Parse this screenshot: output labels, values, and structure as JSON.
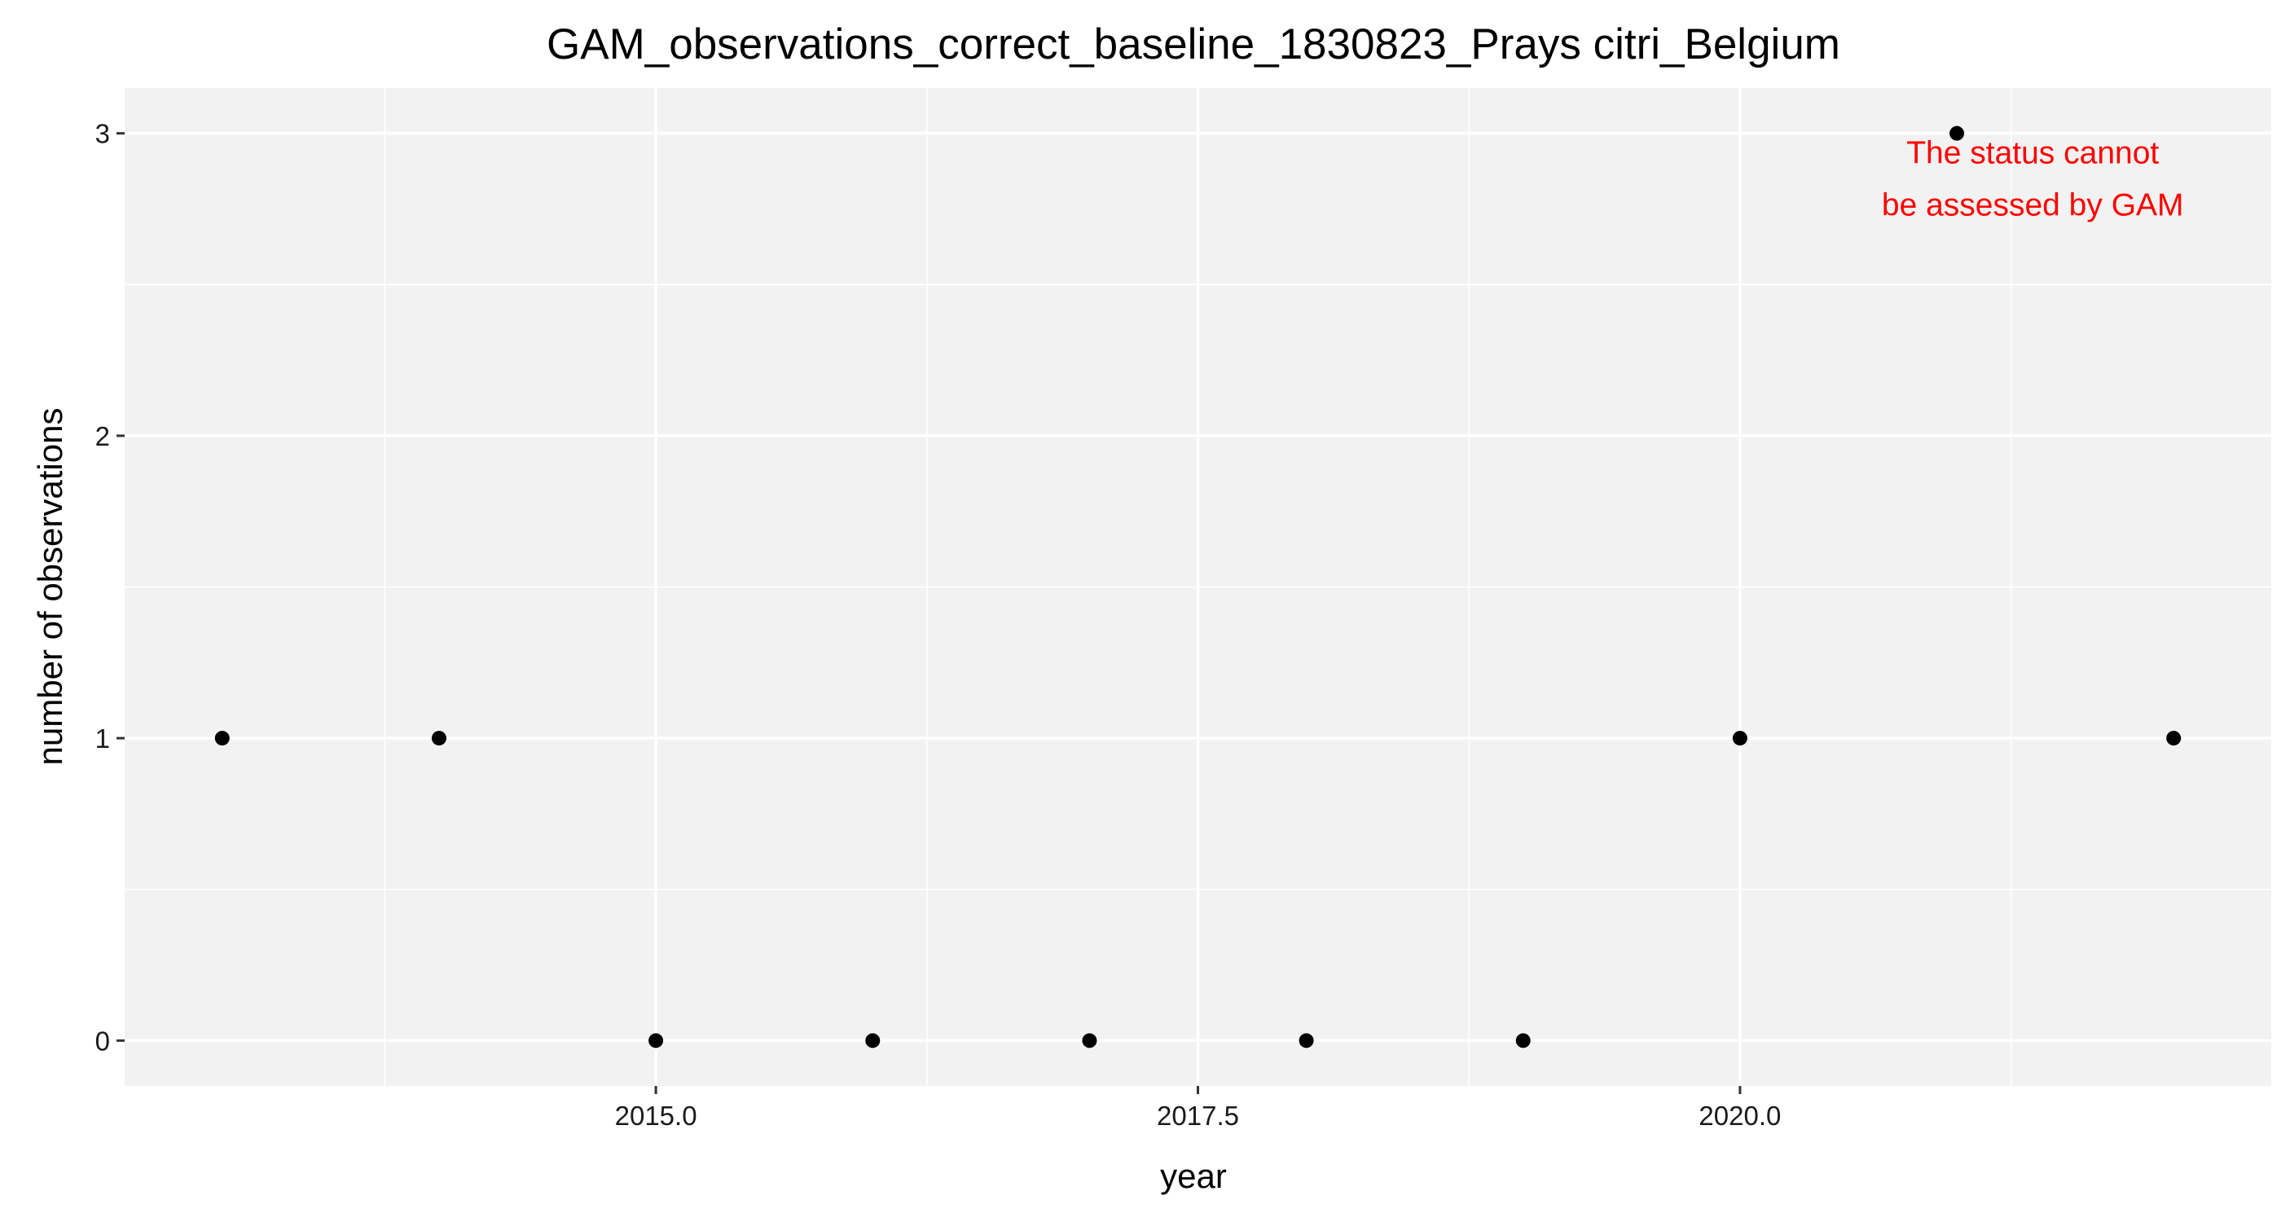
{
  "chart_data": {
    "type": "scatter",
    "title": "GAM_observations_correct_baseline_1830823_Prays citri_Belgium",
    "xlabel": "year",
    "ylabel": "number of observations",
    "xlim": [
      2012.55,
      2022.45
    ],
    "ylim": [
      -0.15,
      3.15
    ],
    "x_ticks": [
      2015,
      2017.5,
      2020
    ],
    "x_tick_labels": [
      "2015.0",
      "2017.5",
      "2020.0"
    ],
    "x_minor_grid": [
      2013.75,
      2016.25,
      2018.75,
      2021.25
    ],
    "y_ticks": [
      0,
      1,
      2,
      3
    ],
    "y_tick_labels": [
      "0",
      "1",
      "2",
      "3"
    ],
    "y_minor_grid": [
      0.5,
      1.5,
      2.5
    ],
    "grid": true,
    "panel_color": "#f2f2f2",
    "grid_color": "#ffffff",
    "point_color": "#000000",
    "series": [
      {
        "x": [
          2013,
          2014,
          2015,
          2016,
          2017,
          2018,
          2019,
          2020,
          2021,
          2022
        ],
        "y": [
          1,
          1,
          0,
          0,
          0,
          0,
          0,
          1,
          3,
          1
        ]
      }
    ],
    "annotation": {
      "lines": [
        "The status cannot",
        "be assessed by GAM"
      ],
      "color": "#ff0000",
      "x": 2021.35,
      "y": 2.85
    }
  }
}
